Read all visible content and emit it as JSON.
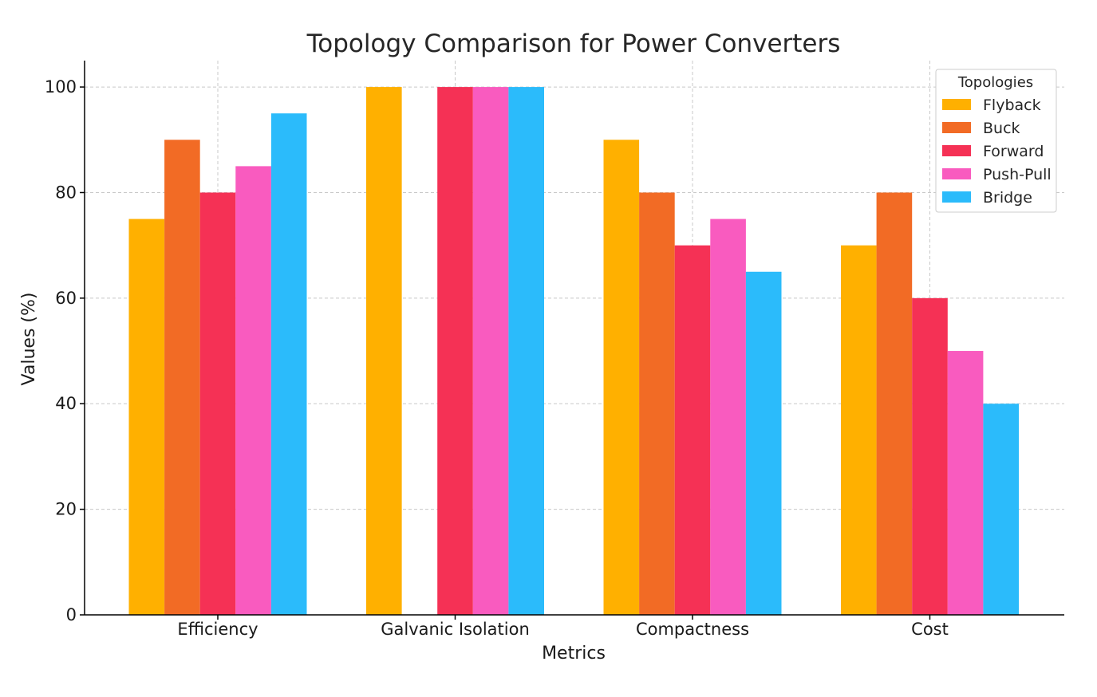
{
  "chart_data": {
    "type": "bar",
    "title": "Topology Comparison for Power Converters",
    "xlabel": "Metrics",
    "ylabel": "Values (%)",
    "categories": [
      "Efficiency",
      "Galvanic Isolation",
      "Compactness",
      "Cost"
    ],
    "series": [
      {
        "name": "Flyback",
        "values": [
          75,
          100,
          90,
          70
        ],
        "color": "#FFB000"
      },
      {
        "name": "Buck",
        "values": [
          90,
          0,
          80,
          80
        ],
        "color": "#F26B25"
      },
      {
        "name": "Forward",
        "values": [
          80,
          100,
          70,
          60
        ],
        "color": "#F53155"
      },
      {
        "name": "Push-Pull",
        "values": [
          85,
          100,
          75,
          50
        ],
        "color": "#F95BBF"
      },
      {
        "name": "Bridge",
        "values": [
          95,
          100,
          65,
          40
        ],
        "color": "#2BBBFB"
      }
    ],
    "ylim": [
      0,
      105
    ],
    "yticks": [
      0,
      20,
      40,
      60,
      80,
      100
    ],
    "grid": true,
    "legend": {
      "title": "Topologies",
      "position": "top-right"
    }
  }
}
